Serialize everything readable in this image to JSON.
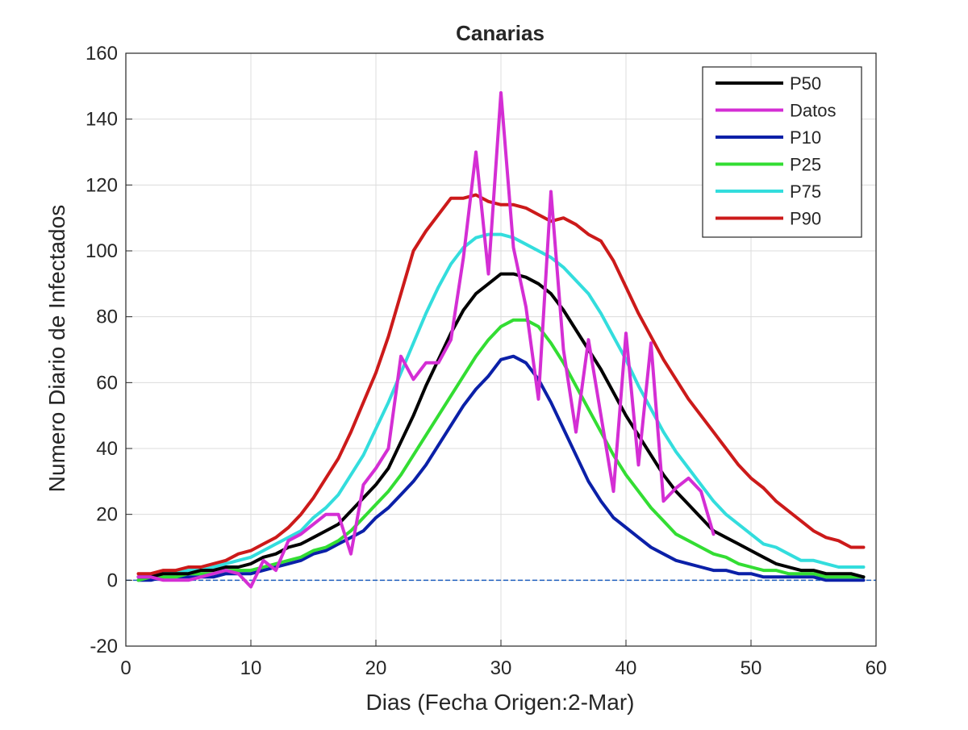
{
  "chart_data": {
    "type": "line",
    "title": "Canarias",
    "xlabel": "Dias (Fecha Origen:2-Mar)",
    "ylabel": "Numero Diario de Infectados",
    "xlim": [
      0,
      60
    ],
    "ylim": [
      -20,
      160
    ],
    "xticks": [
      0,
      10,
      20,
      30,
      40,
      50,
      60
    ],
    "yticks": [
      -20,
      0,
      20,
      40,
      60,
      80,
      100,
      120,
      140,
      160
    ],
    "grid": true,
    "legend_position": "top-right",
    "reference_line": {
      "y": 0,
      "color": "#1f5fbf"
    },
    "series": [
      {
        "name": "P50",
        "color": "#000000",
        "x": [
          1,
          2,
          3,
          4,
          5,
          6,
          7,
          8,
          9,
          10,
          11,
          12,
          13,
          14,
          15,
          16,
          17,
          18,
          19,
          20,
          21,
          22,
          23,
          24,
          25,
          26,
          27,
          28,
          29,
          30,
          31,
          32,
          33,
          34,
          35,
          36,
          37,
          38,
          39,
          40,
          41,
          42,
          43,
          44,
          45,
          46,
          47,
          48,
          49,
          50,
          51,
          52,
          53,
          54,
          55,
          56,
          57,
          58,
          59
        ],
        "y": [
          1,
          1,
          2,
          2,
          2,
          3,
          3,
          4,
          4,
          5,
          7,
          8,
          10,
          11,
          13,
          15,
          17,
          21,
          25,
          29,
          34,
          42,
          50,
          59,
          67,
          75,
          82,
          87,
          90,
          93,
          93,
          92,
          90,
          87,
          82,
          76,
          70,
          64,
          57,
          50,
          44,
          38,
          32,
          27,
          23,
          19,
          15,
          13,
          11,
          9,
          7,
          5,
          4,
          3,
          3,
          2,
          2,
          2,
          1
        ]
      },
      {
        "name": "Datos",
        "color": "#d42ed4",
        "x": [
          1,
          2,
          3,
          4,
          5,
          6,
          7,
          8,
          9,
          10,
          11,
          12,
          13,
          14,
          15,
          16,
          17,
          18,
          19,
          20,
          21,
          22,
          23,
          24,
          25,
          26,
          27,
          28,
          29,
          30,
          31,
          32,
          33,
          34,
          35,
          36,
          37,
          38,
          39,
          40,
          41,
          42,
          43,
          44,
          45,
          46,
          47
        ],
        "y": [
          1,
          1,
          0,
          0,
          0,
          1,
          2,
          3,
          2,
          -2,
          6,
          3,
          12,
          14,
          17,
          20,
          20,
          8,
          29,
          34,
          40,
          68,
          61,
          66,
          66,
          73,
          98,
          130,
          93,
          148,
          101,
          83,
          55,
          118,
          70,
          45,
          73,
          50,
          27,
          75,
          35,
          72,
          24,
          28,
          31,
          27,
          14
        ]
      },
      {
        "name": "P10",
        "color": "#0b20a8",
        "x": [
          1,
          2,
          3,
          4,
          5,
          6,
          7,
          8,
          9,
          10,
          11,
          12,
          13,
          14,
          15,
          16,
          17,
          18,
          19,
          20,
          21,
          22,
          23,
          24,
          25,
          26,
          27,
          28,
          29,
          30,
          31,
          32,
          33,
          34,
          35,
          36,
          37,
          38,
          39,
          40,
          41,
          42,
          43,
          44,
          45,
          46,
          47,
          48,
          49,
          50,
          51,
          52,
          53,
          54,
          55,
          56,
          57,
          58,
          59
        ],
        "y": [
          0,
          0,
          1,
          1,
          1,
          1,
          1,
          2,
          2,
          2,
          3,
          4,
          5,
          6,
          8,
          9,
          11,
          13,
          15,
          19,
          22,
          26,
          30,
          35,
          41,
          47,
          53,
          58,
          62,
          67,
          68,
          66,
          61,
          54,
          46,
          38,
          30,
          24,
          19,
          16,
          13,
          10,
          8,
          6,
          5,
          4,
          3,
          3,
          2,
          2,
          1,
          1,
          1,
          1,
          1,
          0,
          0,
          0,
          0
        ]
      },
      {
        "name": "P25",
        "color": "#33dd33",
        "x": [
          1,
          2,
          3,
          4,
          5,
          6,
          7,
          8,
          9,
          10,
          11,
          12,
          13,
          14,
          15,
          16,
          17,
          18,
          19,
          20,
          21,
          22,
          23,
          24,
          25,
          26,
          27,
          28,
          29,
          30,
          31,
          32,
          33,
          34,
          35,
          36,
          37,
          38,
          39,
          40,
          41,
          42,
          43,
          44,
          45,
          46,
          47,
          48,
          49,
          50,
          51,
          52,
          53,
          54,
          55,
          56,
          57,
          58,
          59
        ],
        "y": [
          0,
          1,
          1,
          1,
          2,
          2,
          2,
          3,
          3,
          3,
          4,
          5,
          6,
          7,
          9,
          10,
          12,
          15,
          19,
          23,
          27,
          32,
          38,
          44,
          50,
          56,
          62,
          68,
          73,
          77,
          79,
          79,
          77,
          72,
          66,
          59,
          52,
          45,
          38,
          32,
          27,
          22,
          18,
          14,
          12,
          10,
          8,
          7,
          5,
          4,
          3,
          3,
          2,
          2,
          2,
          1,
          1,
          1,
          1
        ]
      },
      {
        "name": "P75",
        "color": "#33dddd",
        "x": [
          1,
          2,
          3,
          4,
          5,
          6,
          7,
          8,
          9,
          10,
          11,
          12,
          13,
          14,
          15,
          16,
          17,
          18,
          19,
          20,
          21,
          22,
          23,
          24,
          25,
          26,
          27,
          28,
          29,
          30,
          31,
          32,
          33,
          34,
          35,
          36,
          37,
          38,
          39,
          40,
          41,
          42,
          43,
          44,
          45,
          46,
          47,
          48,
          49,
          50,
          51,
          52,
          53,
          54,
          55,
          56,
          57,
          58,
          59
        ],
        "y": [
          1,
          1,
          2,
          2,
          3,
          3,
          4,
          5,
          6,
          7,
          9,
          11,
          13,
          15,
          19,
          22,
          26,
          32,
          38,
          46,
          54,
          63,
          72,
          81,
          89,
          96,
          101,
          104,
          105,
          105,
          104,
          102,
          100,
          98,
          95,
          91,
          87,
          81,
          74,
          67,
          59,
          52,
          45,
          39,
          34,
          29,
          24,
          20,
          17,
          14,
          11,
          10,
          8,
          6,
          6,
          5,
          4,
          4,
          4
        ]
      },
      {
        "name": "P90",
        "color": "#cc1a1a",
        "x": [
          1,
          2,
          3,
          4,
          5,
          6,
          7,
          8,
          9,
          10,
          11,
          12,
          13,
          14,
          15,
          16,
          17,
          18,
          19,
          20,
          21,
          22,
          23,
          24,
          25,
          26,
          27,
          28,
          29,
          30,
          31,
          32,
          33,
          34,
          35,
          36,
          37,
          38,
          39,
          40,
          41,
          42,
          43,
          44,
          45,
          46,
          47,
          48,
          49,
          50,
          51,
          52,
          53,
          54,
          55,
          56,
          57,
          58,
          59
        ],
        "y": [
          2,
          2,
          3,
          3,
          4,
          4,
          5,
          6,
          8,
          9,
          11,
          13,
          16,
          20,
          25,
          31,
          37,
          45,
          54,
          63,
          74,
          87,
          100,
          106,
          111,
          116,
          116,
          117,
          115,
          114,
          114,
          113,
          111,
          109,
          110,
          108,
          105,
          103,
          97,
          89,
          81,
          74,
          67,
          61,
          55,
          50,
          45,
          40,
          35,
          31,
          28,
          24,
          21,
          18,
          15,
          13,
          12,
          10,
          10
        ]
      }
    ]
  }
}
